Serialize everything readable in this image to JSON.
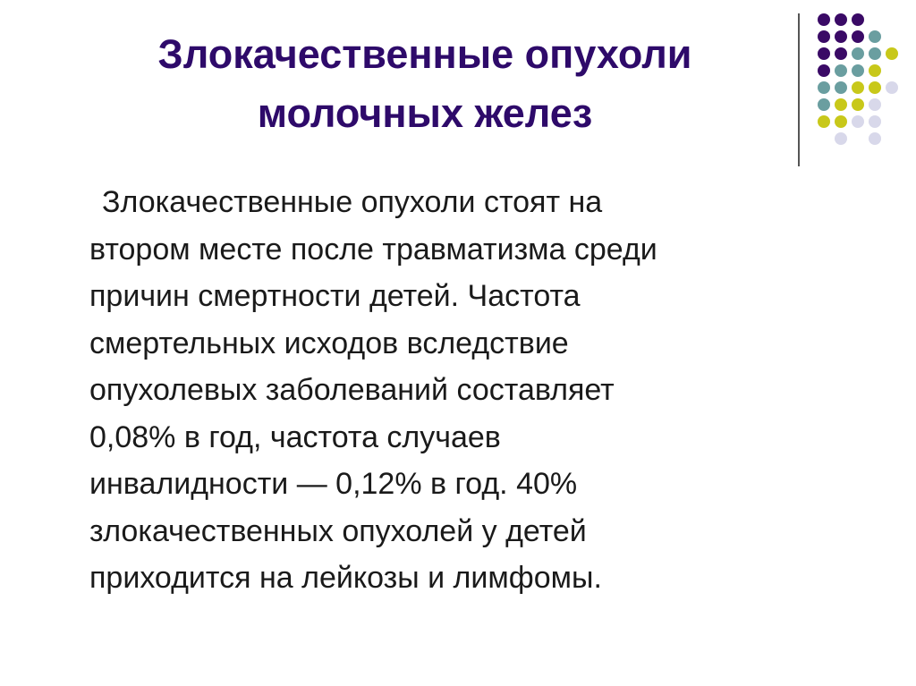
{
  "slide": {
    "title_lines": [
      "Злокачественные опухоли",
      "молочных желез"
    ],
    "body_lines": [
      "Злокачественные опухоли стоят на",
      "втором месте после травматизма среди",
      "причин смертности детей. Частота",
      "смертельных исходов вследствие",
      "опухолевых заболеваний составляет",
      "0,08% в год, частота случаев",
      "инвалидности — 0,12% в год. 40%",
      "злокачественных опухолей у детей",
      "приходится на лейкозы и лимфомы."
    ]
  },
  "decoration": {
    "colors": {
      "P": "#3a0a66",
      "T": "#6a9ea0",
      "Y": "#c8c81a",
      "L": "#d8d8ea"
    },
    "dot_grid": [
      "PPP..",
      "PPPT.",
      "PPTTY",
      "PTTY.",
      "TTYYL",
      "TYYL.",
      "YYLL.",
      ".L.L."
    ]
  }
}
